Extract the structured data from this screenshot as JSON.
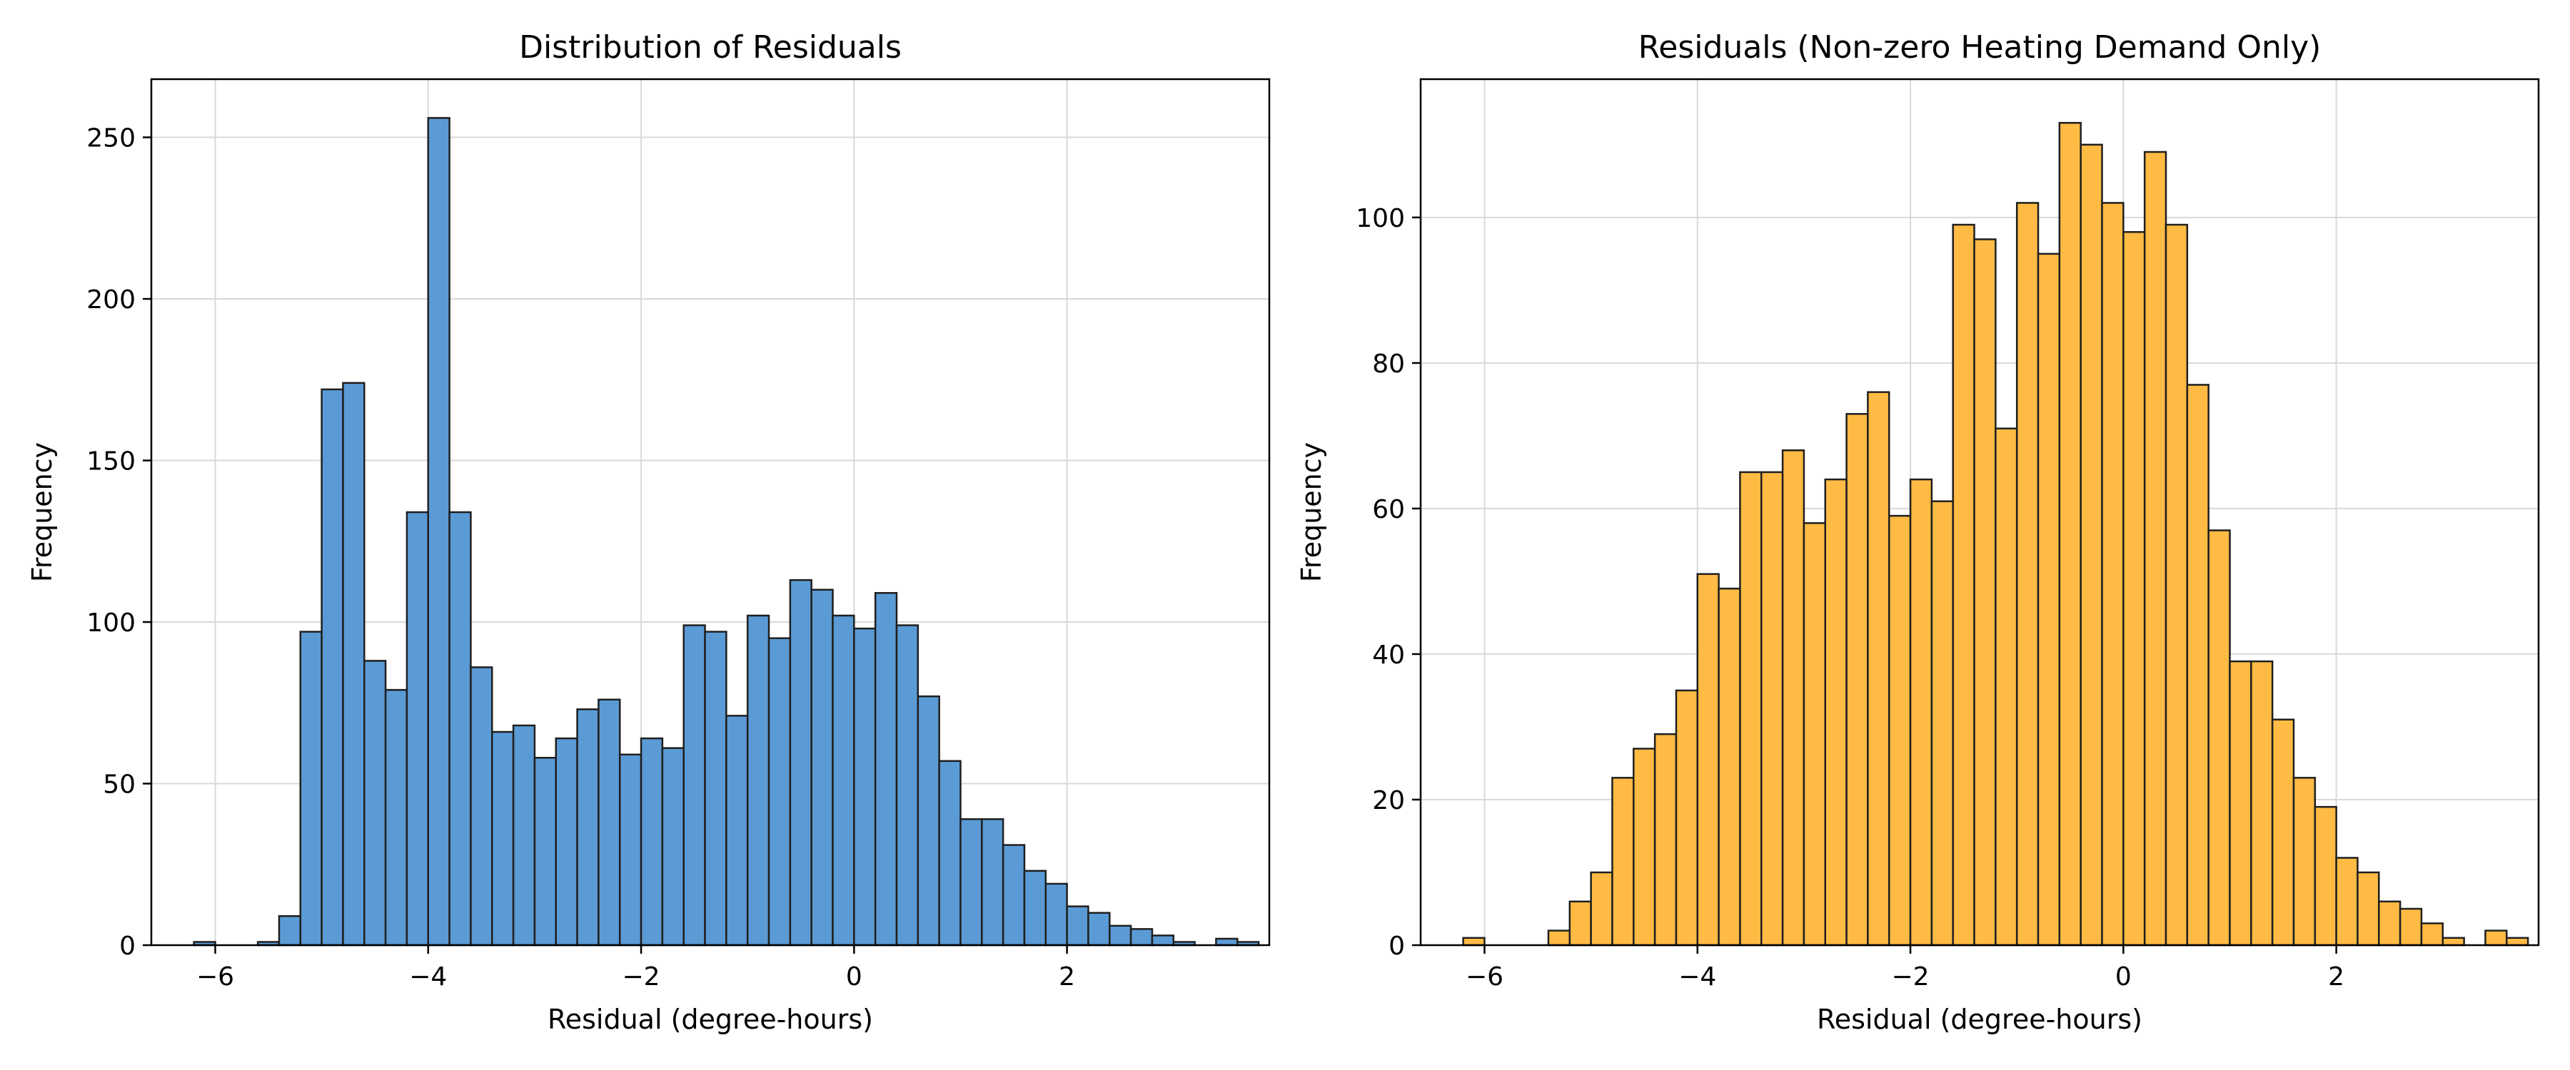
{
  "chart_data": [
    {
      "type": "bar",
      "title": "Distribution of Residuals",
      "xlabel": "Residual (degree-hours)",
      "ylabel": "Frequency",
      "xlim": [
        -6.6,
        3.9
      ],
      "ylim": [
        0,
        268
      ],
      "xticks": [
        -6,
        -4,
        -2,
        0,
        2
      ],
      "xtick_labels": [
        "−6",
        "−4",
        "−2",
        "0",
        "2"
      ],
      "yticks": [
        0,
        50,
        100,
        150,
        200,
        250
      ],
      "ytick_labels": [
        "0",
        "50",
        "100",
        "150",
        "200",
        "250"
      ],
      "grid": true,
      "bar_color": "#5b9bd5",
      "edge_color": "#1f1f1f",
      "bin_start": -6.2,
      "bin_width": 0.2,
      "values": [
        1,
        0,
        0,
        1,
        9,
        97,
        172,
        174,
        88,
        79,
        134,
        256,
        134,
        86,
        66,
        68,
        58,
        64,
        73,
        76,
        59,
        64,
        61,
        99,
        97,
        71,
        102,
        95,
        113,
        110,
        102,
        98,
        109,
        99,
        77,
        57,
        39,
        39,
        31,
        23,
        19,
        12,
        10,
        6,
        5,
        3,
        1,
        0,
        2,
        1
      ]
    },
    {
      "type": "bar",
      "title": "Residuals (Non-zero Heating Demand Only)",
      "xlabel": "Residual (degree-hours)",
      "ylabel": "Frequency",
      "xlim": [
        -6.6,
        3.9
      ],
      "ylim": [
        0,
        119
      ],
      "xticks": [
        -6,
        -4,
        -2,
        0,
        2
      ],
      "xtick_labels": [
        "−6",
        "−4",
        "−2",
        "0",
        "2"
      ],
      "yticks": [
        0,
        20,
        40,
        60,
        80,
        100
      ],
      "ytick_labels": [
        "0",
        "20",
        "40",
        "60",
        "80",
        "100"
      ],
      "grid": true,
      "bar_color": "#ffbb44",
      "edge_color": "#1f1f1f",
      "bin_start": -6.2,
      "bin_width": 0.2,
      "values": [
        1,
        0,
        0,
        0,
        2,
        6,
        10,
        23,
        27,
        29,
        35,
        51,
        49,
        65,
        65,
        68,
        58,
        64,
        73,
        76,
        59,
        64,
        61,
        99,
        97,
        71,
        102,
        95,
        113,
        110,
        102,
        98,
        109,
        99,
        77,
        57,
        39,
        39,
        31,
        23,
        19,
        12,
        10,
        6,
        5,
        3,
        1,
        0,
        2,
        1
      ]
    }
  ]
}
